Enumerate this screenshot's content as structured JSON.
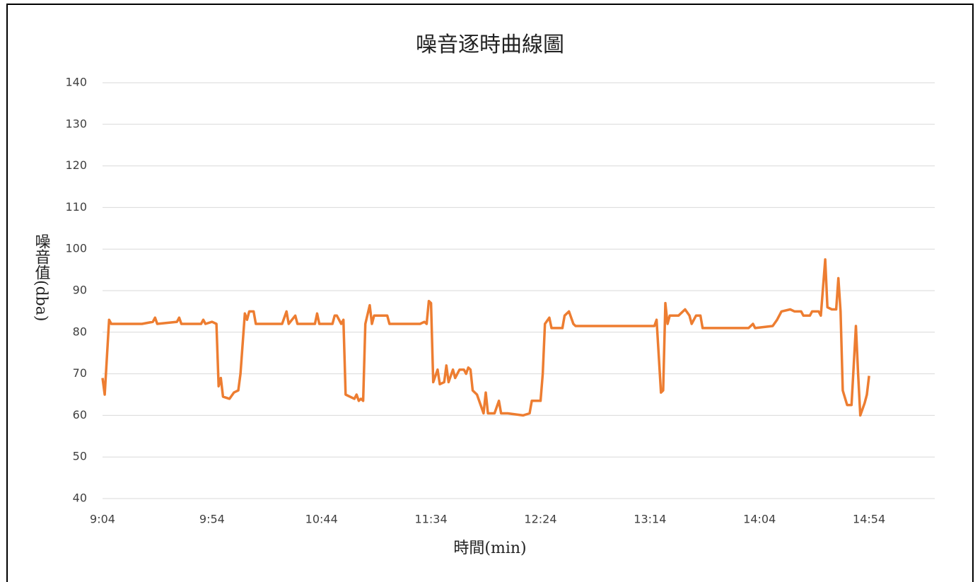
{
  "chart_data": {
    "type": "line",
    "title": "噪音逐時曲線圖",
    "x_label": "時間(min)",
    "y_label": "噪音值(dba)",
    "x": [
      "9:04",
      "9:05",
      "9:07",
      "9:08",
      "9:22",
      "9:27",
      "9:28",
      "9:29",
      "9:38",
      "9:39",
      "9:40",
      "9:49",
      "9:50",
      "9:51",
      "9:54",
      "9:56",
      "9:57",
      "9:58",
      "9:59",
      "10:02",
      "10:04",
      "10:06",
      "10:07",
      "10:09",
      "10:10",
      "10:11",
      "10:13",
      "10:14",
      "10:26",
      "10:28",
      "10:29",
      "10:32",
      "10:33",
      "10:41",
      "10:42",
      "10:43",
      "10:49",
      "10:50",
      "10:51",
      "10:53",
      "10:54",
      "10:55",
      "10:59",
      "11:00",
      "11:01",
      "11:02",
      "11:03",
      "11:04",
      "11:06",
      "11:07",
      "11:08",
      "11:14",
      "11:15",
      "11:29",
      "11:31",
      "11:32",
      "11:33",
      "11:34",
      "11:35",
      "11:37",
      "11:38",
      "11:40",
      "11:41",
      "11:42",
      "11:44",
      "11:45",
      "11:47",
      "11:49",
      "11:50",
      "11:51",
      "11:52",
      "11:53",
      "11:55",
      "11:58",
      "11:59",
      "12:00",
      "12:03",
      "12:05",
      "12:06",
      "12:09",
      "12:16",
      "12:19",
      "12:20",
      "12:24",
      "12:25",
      "12:26",
      "12:28",
      "12:29",
      "12:34",
      "12:35",
      "12:37",
      "12:39",
      "12:40",
      "13:16",
      "13:17",
      "13:19",
      "13:20",
      "13:21",
      "13:22",
      "13:23",
      "13:27",
      "13:30",
      "13:32",
      "13:33",
      "13:35",
      "13:37",
      "13:38",
      "13:59",
      "14:01",
      "14:02",
      "14:10",
      "14:12",
      "14:14",
      "14:18",
      "14:20",
      "14:23",
      "14:24",
      "14:27",
      "14:28",
      "14:31",
      "14:32",
      "14:34",
      "14:35",
      "14:37",
      "14:39",
      "14:40",
      "14:41",
      "14:42",
      "14:44",
      "14:46",
      "14:48",
      "14:49",
      "14:50",
      "14:52",
      "14:53",
      "14:54"
    ],
    "series": [
      {
        "name": "噪音值",
        "color": "#ED7D31",
        "values": [
          69,
          65,
          83,
          82,
          82,
          82.5,
          83.5,
          82,
          82.5,
          83.5,
          82,
          82,
          83,
          82,
          82.5,
          82,
          67,
          69,
          64.5,
          64,
          65.5,
          66,
          70,
          84.5,
          83,
          85,
          85,
          82,
          82,
          85,
          82,
          84,
          82,
          82,
          84.5,
          82,
          82,
          84,
          84,
          82,
          83,
          65,
          64,
          65,
          63.5,
          64,
          63.5,
          82,
          86.5,
          82,
          84,
          84,
          82,
          82,
          82.5,
          82,
          87.5,
          87,
          68,
          71,
          67.5,
          68,
          72,
          68,
          71,
          69,
          71,
          71,
          70,
          71.5,
          71,
          66,
          65,
          60.5,
          65.5,
          60.5,
          60.5,
          63.5,
          60.5,
          60.5,
          60,
          60.5,
          63.5,
          63.5,
          70,
          82,
          83.5,
          81,
          81,
          84,
          85,
          82,
          81.5,
          81.5,
          83,
          65.5,
          66,
          87,
          82,
          84,
          84,
          85.5,
          84,
          82,
          84,
          84,
          81,
          81,
          82,
          81,
          81.5,
          83,
          85,
          85.5,
          85,
          85,
          84,
          84,
          85,
          85,
          84,
          97.5,
          86,
          85.5,
          85.5,
          93,
          85,
          66,
          62.5,
          62.5,
          81.5,
          70,
          60,
          63,
          65,
          69.5
        ]
      }
    ],
    "xlim": [
      "9:04",
      "15:24"
    ],
    "xticks": [
      "9:04",
      "9:54",
      "10:44",
      "11:34",
      "12:24",
      "13:14",
      "14:04",
      "14:54"
    ],
    "ylim": [
      40,
      140
    ],
    "yticks": [
      40,
      50,
      60,
      70,
      80,
      90,
      100,
      110,
      120,
      130,
      140
    ],
    "grid": true
  }
}
